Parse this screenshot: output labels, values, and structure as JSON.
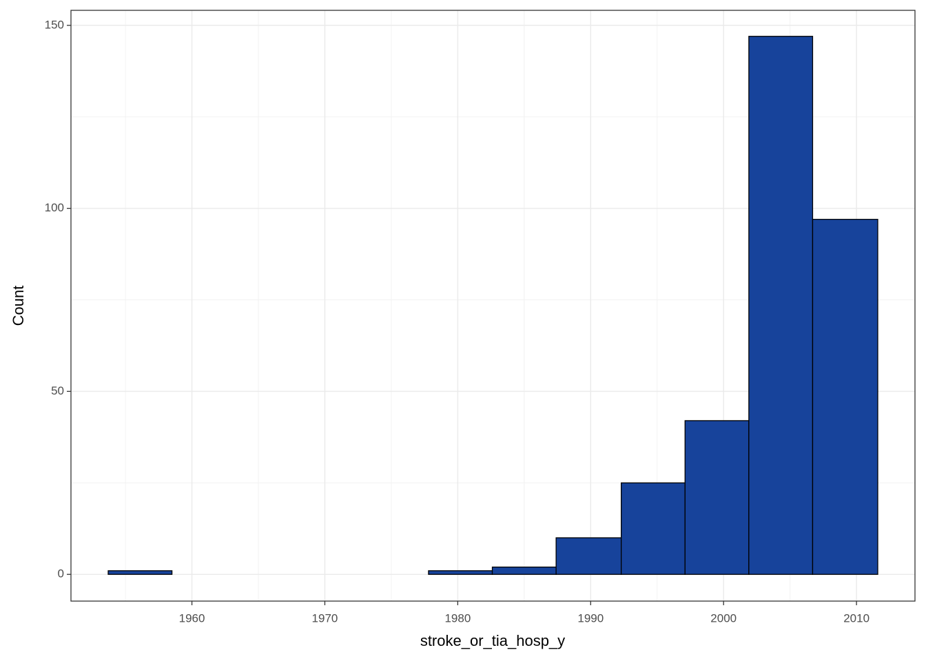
{
  "chart_data": {
    "type": "histogram",
    "x_label": "stroke_or_tia_hosp_y",
    "y_label": "Count",
    "bins": [
      1953.7,
      1958.5,
      1963.3,
      1968.1,
      1973.0,
      1977.8,
      1982.6,
      1987.4,
      1992.3,
      1997.1,
      2001.9,
      2006.7,
      2011.6
    ],
    "values": [
      1,
      0,
      0,
      0,
      0,
      1,
      2,
      10,
      25,
      42,
      147,
      97
    ],
    "color": "#17439b",
    "edge_color": "#000000",
    "xlim": [
      1950.9,
      2014.4
    ],
    "ylim": [
      -7.3,
      154.1
    ],
    "xticks": [
      1960,
      1970,
      1980,
      1990,
      2000,
      2010
    ],
    "yticks": [
      0,
      50,
      100,
      150
    ],
    "minor_xticks": [
      1955,
      1965,
      1975,
      1985,
      1995,
      2005
    ],
    "minor_yticks": [
      25,
      75,
      125
    ],
    "grid": true
  }
}
